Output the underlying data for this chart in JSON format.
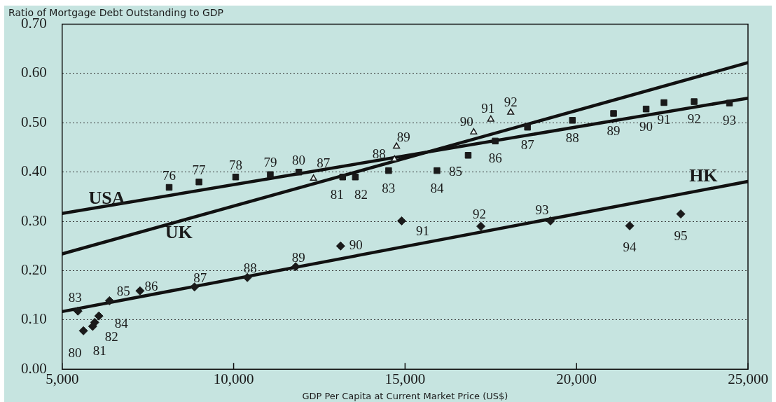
{
  "chart_data": {
    "type": "scatter",
    "xlabel": "GDP Per Capita at Current Market Price (US$)",
    "ylabel": "Ratio of Mortgage Debt Outstanding to GDP",
    "xlim": [
      5000,
      25000
    ],
    "xticks": [
      {
        "value": 5000,
        "label": "5,000"
      },
      {
        "value": 10000,
        "label": "10,000"
      },
      {
        "value": 15000,
        "label": "15,000"
      },
      {
        "value": 20000,
        "label": "20,000"
      },
      {
        "value": 25000,
        "label": "25,000"
      }
    ],
    "ylim": [
      0,
      0.7
    ],
    "yticks": [
      {
        "value": 0,
        "label": "0.00"
      },
      {
        "value": 0.1,
        "label": "0.10"
      },
      {
        "value": 0.2,
        "label": "0.20"
      },
      {
        "value": 0.3,
        "label": "0.30"
      },
      {
        "value": 0.4,
        "label": "0.40"
      },
      {
        "value": 0.5,
        "label": "0.50"
      },
      {
        "value": 0.6,
        "label": "0.60"
      },
      {
        "value": 0.7,
        "label": "0.70"
      }
    ],
    "grid": "y",
    "series": [
      {
        "type": "scatter",
        "marker": "square",
        "color": "#1a1a1a",
        "x": [
          8120,
          8990,
          10060,
          11070,
          11900,
          13180,
          13550,
          14520,
          15930,
          16840,
          17630,
          18570,
          19880,
          21080,
          22030,
          22550,
          23430,
          24460
        ],
        "values": [
          0.369,
          0.38,
          0.39,
          0.395,
          0.4,
          0.39,
          0.39,
          0.403,
          0.403,
          0.434,
          0.463,
          0.491,
          0.505,
          0.519,
          0.528,
          0.541,
          0.543,
          0.54
        ]
      },
      {
        "type": "scatter",
        "marker": "triangle",
        "color": "#1a1a1a",
        "x": [
          12330,
          14690,
          14750,
          17000,
          17500,
          18080
        ],
        "values": [
          0.387,
          0.426,
          0.452,
          0.481,
          0.507,
          0.521
        ]
      },
      {
        "type": "scatter",
        "marker": "diamond",
        "color": "#1a1a1a",
        "x": [
          5620,
          5890,
          5950,
          5460,
          6070,
          6380,
          7270,
          8860,
          10400,
          11810,
          13120,
          14900,
          17210,
          19240,
          21550,
          23040
        ],
        "values": [
          0.078,
          0.087,
          0.095,
          0.118,
          0.108,
          0.139,
          0.159,
          0.167,
          0.186,
          0.208,
          0.25,
          0.301,
          0.29,
          0.301,
          0.291,
          0.315
        ]
      },
      {
        "name": "USA",
        "type": "line",
        "color": "#111111",
        "x": [
          5000,
          25000
        ],
        "values": [
          0.316,
          0.55
        ]
      },
      {
        "name": "UK",
        "type": "line",
        "color": "#111111",
        "x": [
          5000,
          25000
        ],
        "values": [
          0.234,
          0.622
        ]
      },
      {
        "name": "HK",
        "type": "line",
        "color": "#111111",
        "x": [
          5000,
          25000
        ],
        "values": [
          0.117,
          0.381
        ]
      }
    ],
    "annotations": [
      {
        "text": "76",
        "x": 8120,
        "y": 0.369
      },
      {
        "text": "77",
        "x": 8990,
        "y": 0.38
      },
      {
        "text": "78",
        "x": 10060,
        "y": 0.39
      },
      {
        "text": "79",
        "x": 11070,
        "y": 0.395
      },
      {
        "text": "80",
        "x": 11900,
        "y": 0.4
      },
      {
        "text": "81",
        "x": 13180,
        "y": 0.39
      },
      {
        "text": "82",
        "x": 13550,
        "y": 0.39
      },
      {
        "text": "83",
        "x": 14520,
        "y": 0.403
      },
      {
        "text": "84",
        "x": 15930,
        "y": 0.403
      },
      {
        "text": "85",
        "x": 16840,
        "y": 0.434
      },
      {
        "text": "86",
        "x": 17630,
        "y": 0.463
      },
      {
        "text": "87",
        "x": 18570,
        "y": 0.491
      },
      {
        "text": "88",
        "x": 19880,
        "y": 0.505
      },
      {
        "text": "89",
        "x": 21080,
        "y": 0.519
      },
      {
        "text": "90",
        "x": 22030,
        "y": 0.528
      },
      {
        "text": "91",
        "x": 22550,
        "y": 0.541
      },
      {
        "text": "92",
        "x": 23430,
        "y": 0.543
      },
      {
        "text": "93",
        "x": 24460,
        "y": 0.54
      },
      {
        "text": "87",
        "x": 12330,
        "y": 0.387
      },
      {
        "text": "88",
        "x": 14690,
        "y": 0.426
      },
      {
        "text": "89",
        "x": 14750,
        "y": 0.452
      },
      {
        "text": "90",
        "x": 17000,
        "y": 0.481
      },
      {
        "text": "91",
        "x": 17500,
        "y": 0.507
      },
      {
        "text": "92",
        "x": 18080,
        "y": 0.521
      },
      {
        "text": "80",
        "x": 5620,
        "y": 0.078
      },
      {
        "text": "81",
        "x": 5890,
        "y": 0.087
      },
      {
        "text": "82",
        "x": 5950,
        "y": 0.095
      },
      {
        "text": "83",
        "x": 5460,
        "y": 0.118
      },
      {
        "text": "84",
        "x": 6070,
        "y": 0.108
      },
      {
        "text": "85",
        "x": 6380,
        "y": 0.139
      },
      {
        "text": "86",
        "x": 7270,
        "y": 0.159
      },
      {
        "text": "87",
        "x": 8860,
        "y": 0.167
      },
      {
        "text": "88",
        "x": 10400,
        "y": 0.186
      },
      {
        "text": "89",
        "x": 11810,
        "y": 0.208
      },
      {
        "text": "90",
        "x": 13120,
        "y": 0.25
      },
      {
        "text": "91",
        "x": 14900,
        "y": 0.301
      },
      {
        "text": "92",
        "x": 17210,
        "y": 0.29
      },
      {
        "text": "93",
        "x": 19240,
        "y": 0.301
      },
      {
        "text": "94",
        "x": 21550,
        "y": 0.291
      },
      {
        "text": "95",
        "x": 23040,
        "y": 0.315
      }
    ]
  }
}
